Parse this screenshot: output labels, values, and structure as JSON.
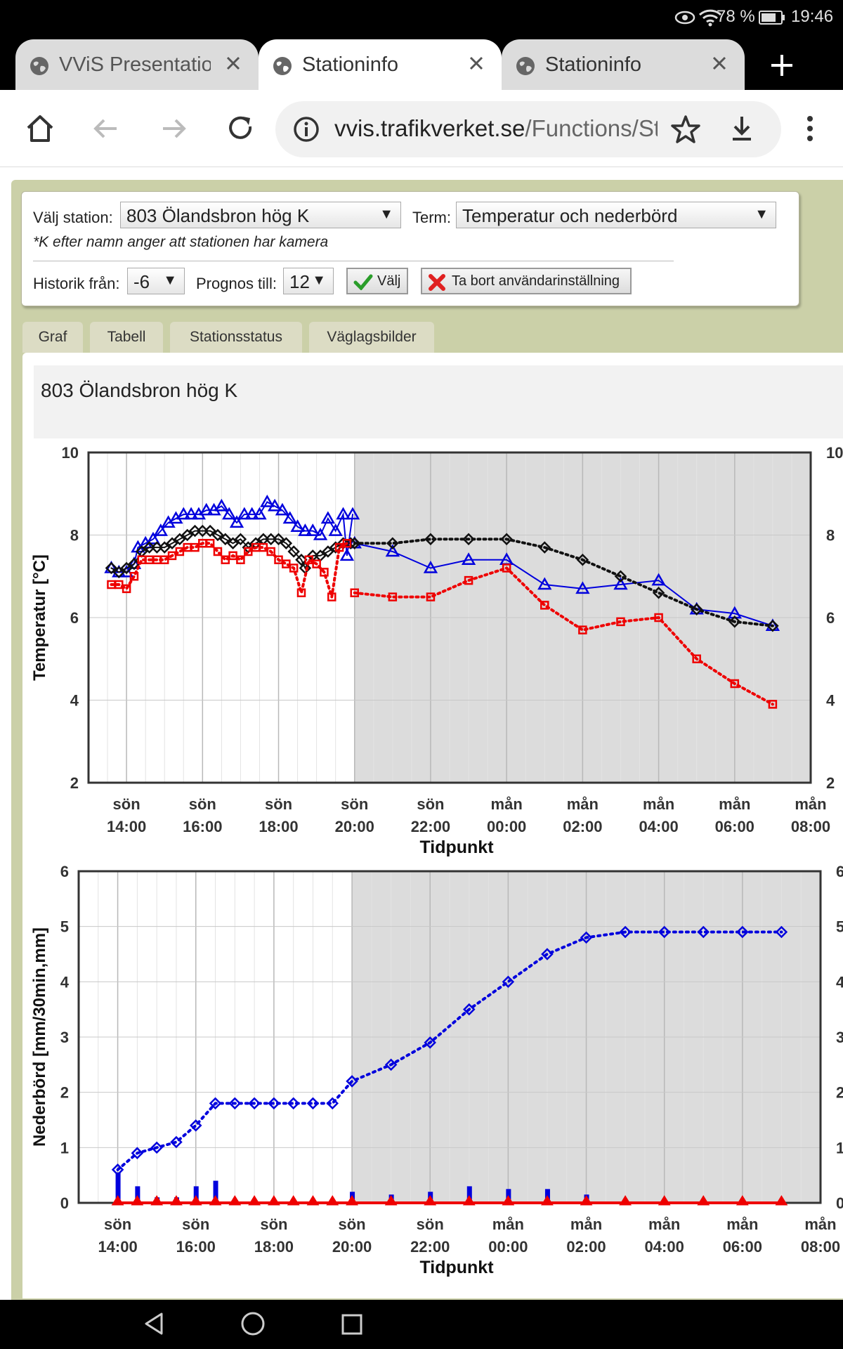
{
  "status_bar": {
    "battery": "78 %",
    "time": "19:46"
  },
  "browser": {
    "tabs": [
      {
        "title": "VViS Presentation",
        "active": false
      },
      {
        "title": "Stationinfo",
        "active": true
      },
      {
        "title": "Stationinfo",
        "active": false
      }
    ],
    "url_domain": "vvis.trafikverket.se",
    "url_path": "/Functions/Station"
  },
  "controls": {
    "station_label": "Välj station:",
    "station_value": "803 Ölandsbron hög K",
    "term_label": "Term:",
    "term_value": "Temperatur och nederbörd",
    "camera_note": "*K efter namn anger att stationen har kamera",
    "history_label": "Historik från:",
    "history_value": "-6",
    "forecast_label": "Prognos till:",
    "forecast_value": "12",
    "select_button": "Välj",
    "remove_button": "Ta bort användarinställning"
  },
  "page_tabs": [
    "Graf",
    "Tabell",
    "Stationsstatus",
    "Väglagsbilder"
  ],
  "station_title": "803 Ölandsbron hög K",
  "chart_data": [
    {
      "type": "line",
      "ylabel": "Temperatur [°C]",
      "xlabel": "Tidpunkt",
      "ylim": [
        2,
        10
      ],
      "yticks": [
        2,
        4,
        6,
        8,
        10
      ],
      "xlim": [
        13,
        32
      ],
      "xticks": [
        {
          "t": 14,
          "day": "sön",
          "time": "14:00"
        },
        {
          "t": 16,
          "day": "sön",
          "time": "16:00"
        },
        {
          "t": 18,
          "day": "sön",
          "time": "18:00"
        },
        {
          "t": 20,
          "day": "sön",
          "time": "20:00"
        },
        {
          "t": 22,
          "day": "sön",
          "time": "22:00"
        },
        {
          "t": 24,
          "day": "mån",
          "time": "00:00"
        },
        {
          "t": 26,
          "day": "mån",
          "time": "02:00"
        },
        {
          "t": 28,
          "day": "mån",
          "time": "04:00"
        },
        {
          "t": 30,
          "day": "mån",
          "time": "06:00"
        },
        {
          "t": 32,
          "day": "mån",
          "time": "08:00"
        }
      ],
      "forecast_from": 20,
      "series": [
        {
          "color": "#0000dd",
          "marker": "triangle",
          "style": "solid",
          "points": [
            [
              13.6,
              7.2
            ],
            [
              13.8,
              7.1
            ],
            [
              14.0,
              7.1
            ],
            [
              14.2,
              7.3
            ],
            [
              14.3,
              7.7
            ],
            [
              14.5,
              7.8
            ],
            [
              14.7,
              7.9
            ],
            [
              14.9,
              8.1
            ],
            [
              15.1,
              8.3
            ],
            [
              15.3,
              8.4
            ],
            [
              15.5,
              8.5
            ],
            [
              15.7,
              8.5
            ],
            [
              15.9,
              8.5
            ],
            [
              16.1,
              8.6
            ],
            [
              16.3,
              8.6
            ],
            [
              16.5,
              8.7
            ],
            [
              16.7,
              8.5
            ],
            [
              16.9,
              8.3
            ],
            [
              17.1,
              8.5
            ],
            [
              17.3,
              8.5
            ],
            [
              17.5,
              8.5
            ],
            [
              17.7,
              8.8
            ],
            [
              17.9,
              8.7
            ],
            [
              18.1,
              8.6
            ],
            [
              18.3,
              8.4
            ],
            [
              18.5,
              8.2
            ],
            [
              18.7,
              8.1
            ],
            [
              18.9,
              8.1
            ],
            [
              19.1,
              8.0
            ],
            [
              19.3,
              8.4
            ],
            [
              19.5,
              8.1
            ],
            [
              19.7,
              8.5
            ],
            [
              19.8,
              7.5
            ],
            [
              19.95,
              8.5
            ]
          ]
        },
        {
          "color": "#0000dd",
          "marker": "triangle",
          "style": "solid",
          "points": [
            [
              20,
              7.8
            ],
            [
              21,
              7.6
            ],
            [
              22,
              7.2
            ],
            [
              23,
              7.4
            ],
            [
              24,
              7.4
            ],
            [
              25,
              6.8
            ],
            [
              26,
              6.7
            ],
            [
              27,
              6.8
            ],
            [
              28,
              6.9
            ],
            [
              29,
              6.2
            ],
            [
              30,
              6.1
            ],
            [
              31,
              5.8
            ]
          ]
        },
        {
          "color": "#111111",
          "marker": "diamond",
          "style": "solid",
          "points": [
            [
              13.6,
              7.2
            ],
            [
              13.8,
              7.1
            ],
            [
              14.0,
              7.2
            ],
            [
              14.2,
              7.3
            ],
            [
              14.4,
              7.6
            ],
            [
              14.6,
              7.7
            ],
            [
              14.8,
              7.7
            ],
            [
              15.0,
              7.7
            ],
            [
              15.2,
              7.8
            ],
            [
              15.4,
              7.9
            ],
            [
              15.6,
              8.0
            ],
            [
              15.8,
              8.1
            ],
            [
              16.0,
              8.1
            ],
            [
              16.2,
              8.1
            ],
            [
              16.4,
              8.0
            ],
            [
              16.6,
              7.9
            ],
            [
              16.8,
              7.8
            ],
            [
              17.0,
              7.9
            ],
            [
              17.2,
              7.7
            ],
            [
              17.4,
              7.8
            ],
            [
              17.6,
              7.9
            ],
            [
              17.8,
              7.9
            ],
            [
              18.0,
              7.9
            ],
            [
              18.2,
              7.8
            ],
            [
              18.4,
              7.6
            ],
            [
              18.6,
              7.4
            ],
            [
              18.7,
              7.2
            ],
            [
              18.9,
              7.5
            ],
            [
              19.1,
              7.5
            ],
            [
              19.3,
              7.6
            ],
            [
              19.5,
              7.7
            ],
            [
              19.7,
              7.8
            ],
            [
              19.9,
              7.8
            ]
          ]
        },
        {
          "color": "#111111",
          "marker": "diamond",
          "style": "dotted",
          "points": [
            [
              20,
              7.8
            ],
            [
              21,
              7.8
            ],
            [
              22,
              7.9
            ],
            [
              23,
              7.9
            ],
            [
              24,
              7.9
            ],
            [
              25,
              7.7
            ],
            [
              26,
              7.4
            ],
            [
              27,
              7.0
            ],
            [
              28,
              6.6
            ],
            [
              29,
              6.2
            ],
            [
              30,
              5.9
            ],
            [
              31,
              5.8
            ]
          ]
        },
        {
          "color": "#ee0000",
          "marker": "square",
          "style": "dotted",
          "points": [
            [
              13.6,
              6.8
            ],
            [
              13.8,
              6.8
            ],
            [
              14.0,
              6.7
            ],
            [
              14.2,
              7.0
            ],
            [
              14.4,
              7.4
            ],
            [
              14.6,
              7.4
            ],
            [
              14.8,
              7.4
            ],
            [
              15.0,
              7.4
            ],
            [
              15.2,
              7.5
            ],
            [
              15.4,
              7.6
            ],
            [
              15.6,
              7.7
            ],
            [
              15.8,
              7.7
            ],
            [
              16.0,
              7.8
            ],
            [
              16.2,
              7.8
            ],
            [
              16.4,
              7.6
            ],
            [
              16.6,
              7.4
            ],
            [
              16.8,
              7.5
            ],
            [
              17.0,
              7.4
            ],
            [
              17.2,
              7.6
            ],
            [
              17.4,
              7.7
            ],
            [
              17.6,
              7.7
            ],
            [
              17.8,
              7.6
            ],
            [
              18.0,
              7.4
            ],
            [
              18.2,
              7.3
            ],
            [
              18.4,
              7.2
            ],
            [
              18.6,
              6.6
            ],
            [
              18.8,
              7.4
            ],
            [
              19.0,
              7.3
            ],
            [
              19.2,
              7.1
            ],
            [
              19.4,
              6.5
            ],
            [
              19.6,
              7.7
            ],
            [
              19.8,
              7.8
            ]
          ]
        },
        {
          "color": "#ee0000",
          "marker": "square",
          "style": "dotted",
          "points": [
            [
              20,
              6.6
            ],
            [
              21,
              6.5
            ],
            [
              22,
              6.5
            ],
            [
              23,
              6.9
            ],
            [
              24,
              7.2
            ],
            [
              25,
              6.3
            ],
            [
              26,
              5.7
            ],
            [
              27,
              5.9
            ],
            [
              28,
              6.0
            ],
            [
              29,
              5.0
            ],
            [
              30,
              4.4
            ],
            [
              31,
              3.9
            ]
          ]
        }
      ]
    },
    {
      "type": "line",
      "ylabel": "Nederbörd [mm/30min,mm]",
      "xlabel": "Tidpunkt",
      "ylim": [
        0,
        6
      ],
      "yticks": [
        0,
        1,
        2,
        3,
        4,
        5,
        6
      ],
      "xlim": [
        13,
        32
      ],
      "xticks": [
        {
          "t": 14,
          "day": "sön",
          "time": "14:00"
        },
        {
          "t": 16,
          "day": "sön",
          "time": "16:00"
        },
        {
          "t": 18,
          "day": "sön",
          "time": "18:00"
        },
        {
          "t": 20,
          "day": "sön",
          "time": "20:00"
        },
        {
          "t": 22,
          "day": "sön",
          "time": "22:00"
        },
        {
          "t": 24,
          "day": "mån",
          "time": "00:00"
        },
        {
          "t": 26,
          "day": "mån",
          "time": "02:00"
        },
        {
          "t": 28,
          "day": "mån",
          "time": "04:00"
        },
        {
          "t": 30,
          "day": "mån",
          "time": "06:00"
        },
        {
          "t": 32,
          "day": "mån",
          "time": "08:00"
        }
      ],
      "forecast_from": 20,
      "accumulated": {
        "color": "#0000dd",
        "marker": "diamond",
        "style": "dotted",
        "points": [
          [
            14,
            0.6
          ],
          [
            14.5,
            0.9
          ],
          [
            15,
            1.0
          ],
          [
            15.5,
            1.1
          ],
          [
            16,
            1.4
          ],
          [
            16.5,
            1.8
          ],
          [
            17,
            1.8
          ],
          [
            17.5,
            1.8
          ],
          [
            18,
            1.8
          ],
          [
            18.5,
            1.8
          ],
          [
            19,
            1.8
          ],
          [
            19.5,
            1.8
          ],
          [
            20,
            2.2
          ],
          [
            21,
            2.5
          ],
          [
            22,
            2.9
          ],
          [
            23,
            3.5
          ],
          [
            24,
            4.0
          ],
          [
            25,
            4.5
          ],
          [
            26,
            4.8
          ],
          [
            27,
            4.9
          ],
          [
            28,
            4.9
          ],
          [
            29,
            4.9
          ],
          [
            30,
            4.9
          ],
          [
            31,
            4.9
          ]
        ]
      },
      "intensity_bars": {
        "color": "#0000dd",
        "points": [
          [
            14,
            0.55
          ],
          [
            14.5,
            0.3
          ],
          [
            15,
            0.1
          ],
          [
            15.5,
            0.1
          ],
          [
            16,
            0.3
          ],
          [
            16.5,
            0.4
          ],
          [
            20,
            0.2
          ],
          [
            21,
            0.15
          ],
          [
            22,
            0.2
          ],
          [
            23,
            0.3
          ],
          [
            24,
            0.25
          ],
          [
            25,
            0.25
          ],
          [
            26,
            0.15
          ]
        ]
      },
      "zero_series": {
        "color": "#ee0000",
        "marker": "triangle",
        "points": [
          14,
          14.5,
          15,
          15.5,
          16,
          16.5,
          17,
          17.5,
          18,
          18.5,
          19,
          19.5,
          20,
          21,
          22,
          23,
          24,
          25,
          26,
          27,
          28,
          29,
          30,
          31
        ]
      }
    }
  ]
}
